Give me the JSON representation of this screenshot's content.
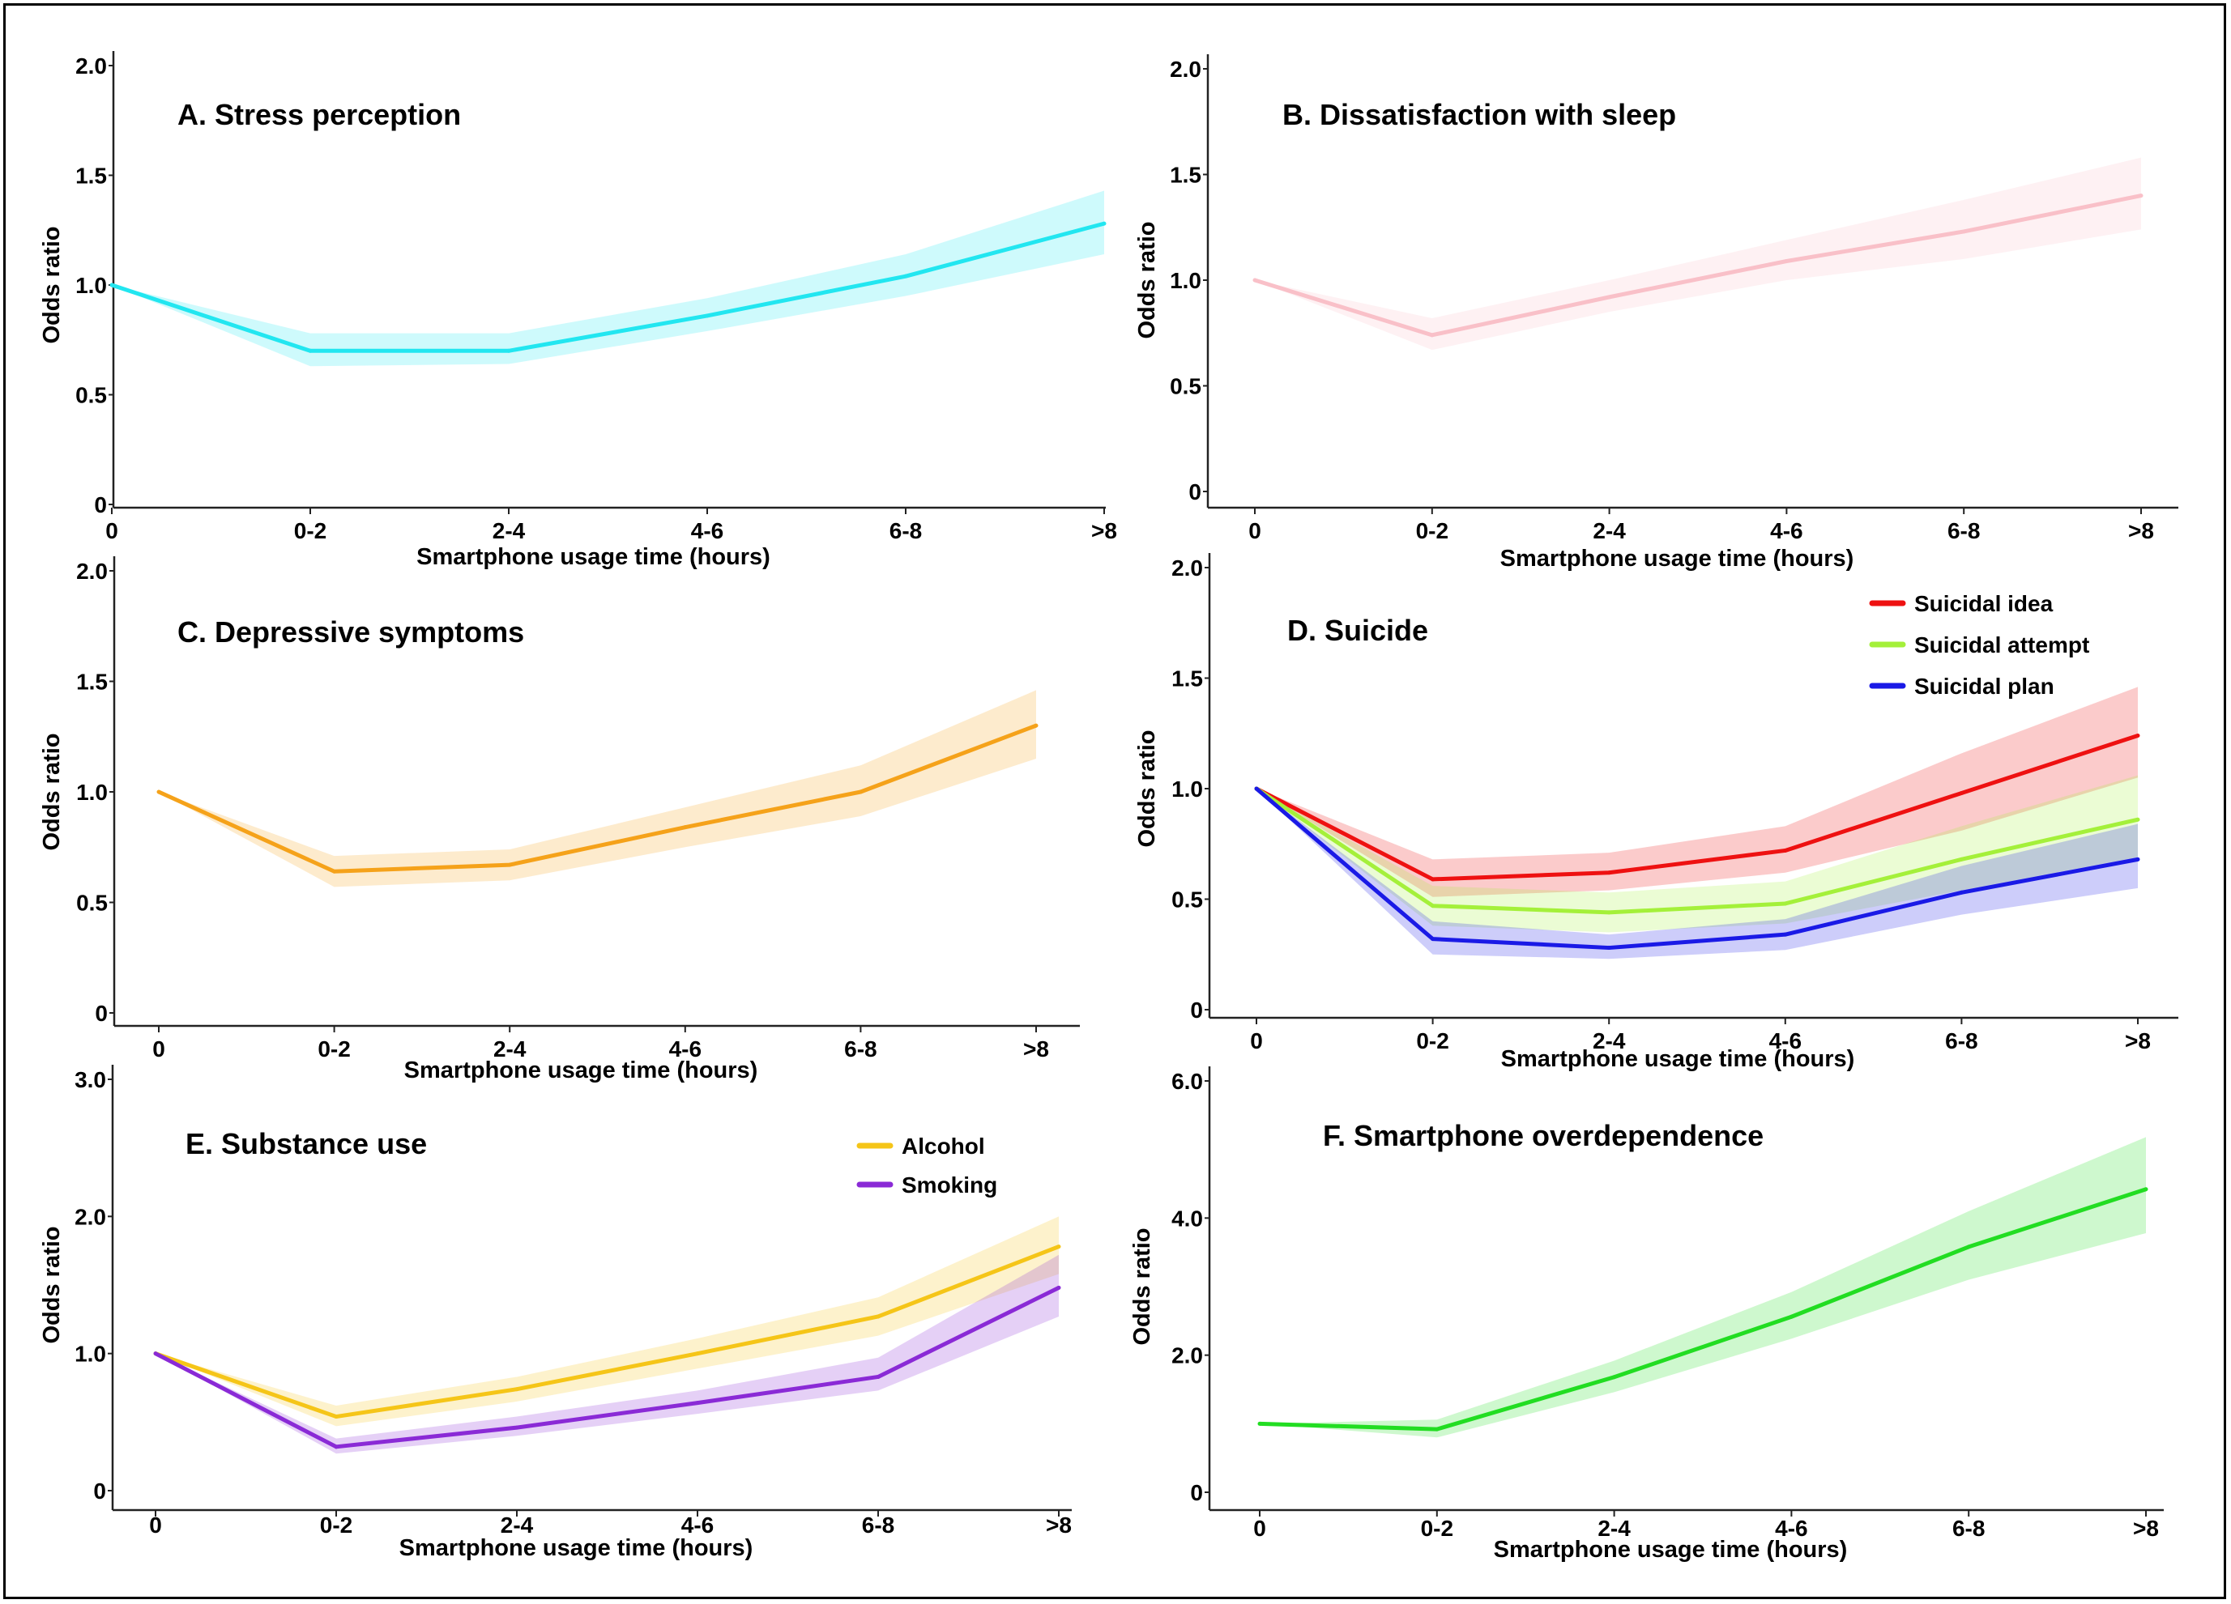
{
  "chart_data": [
    {
      "type": "line",
      "title": "A. Stress perception",
      "xlabel": "Smartphone usage time (hours)",
      "ylabel": "Odds ratio",
      "categories": [
        "0",
        "0-2",
        "2-4",
        "4-6",
        "6-8",
        ">8"
      ],
      "ylim": [
        0,
        2.0
      ],
      "yticks": [
        "0",
        "0.5",
        "1.0",
        "1.5",
        "2.0"
      ],
      "series": [
        {
          "values": [
            1.0,
            0.7,
            0.7,
            0.86,
            1.04,
            1.28
          ],
          "lower": [
            1.0,
            0.63,
            0.64,
            0.79,
            0.95,
            1.14
          ],
          "upper": [
            1.0,
            0.78,
            0.78,
            0.94,
            1.14,
            1.43
          ],
          "color": "#22e6f0"
        }
      ],
      "legend": null
    },
    {
      "type": "line",
      "title": "B. Dissatisfaction with sleep",
      "xlabel": "Smartphone usage time (hours)",
      "ylabel": "Odds ratio",
      "categories": [
        "0",
        "0-2",
        "2-4",
        "4-6",
        "6-8",
        ">8"
      ],
      "ylim": [
        0,
        2.0
      ],
      "yticks": [
        "0",
        "0.5",
        "1.0",
        "1.5",
        "2.0"
      ],
      "series": [
        {
          "values": [
            1.0,
            0.74,
            0.92,
            1.09,
            1.23,
            1.4
          ],
          "lower": [
            1.0,
            0.67,
            0.85,
            1.0,
            1.1,
            1.24
          ],
          "upper": [
            1.0,
            0.82,
            1.0,
            1.19,
            1.38,
            1.58
          ],
          "color": "#f9c0c8"
        }
      ],
      "legend": null
    },
    {
      "type": "line",
      "title": "C. Depressive symptoms",
      "xlabel": "Smartphone usage time (hours)",
      "ylabel": "Odds ratio",
      "categories": [
        "0",
        "0-2",
        "2-4",
        "4-6",
        "6-8",
        ">8"
      ],
      "ylim": [
        0,
        2.0
      ],
      "yticks": [
        "0",
        "0.5",
        "1.0",
        "1.5",
        "2.0"
      ],
      "series": [
        {
          "values": [
            1.0,
            0.64,
            0.67,
            0.84,
            1.0,
            1.3
          ],
          "lower": [
            1.0,
            0.57,
            0.6,
            0.75,
            0.89,
            1.15
          ],
          "upper": [
            1.0,
            0.71,
            0.74,
            0.93,
            1.12,
            1.46
          ],
          "color": "#f5a21a"
        }
      ],
      "legend": null
    },
    {
      "type": "line",
      "title": "D. Suicide",
      "xlabel": "Smartphone usage time (hours)",
      "ylabel": "Odds ratio",
      "categories": [
        "0",
        "0-2",
        "2-4",
        "4-6",
        "6-8",
        ">8"
      ],
      "ylim": [
        0,
        2.0
      ],
      "yticks": [
        "0",
        "0.5",
        "1.0",
        "1.5",
        "2.0"
      ],
      "series": [
        {
          "name": "Suicidal idea",
          "values": [
            1.0,
            0.59,
            0.62,
            0.72,
            0.98,
            1.24
          ],
          "lower": [
            1.0,
            0.51,
            0.54,
            0.62,
            0.81,
            1.05
          ],
          "upper": [
            1.0,
            0.68,
            0.71,
            0.83,
            1.16,
            1.46
          ],
          "color": "#ee1111"
        },
        {
          "name": "Suicidal attempt",
          "values": [
            1.0,
            0.47,
            0.44,
            0.48,
            0.68,
            0.86
          ],
          "lower": [
            1.0,
            0.38,
            0.35,
            0.39,
            0.54,
            0.69
          ],
          "upper": [
            1.0,
            0.56,
            0.53,
            0.58,
            0.83,
            1.06
          ],
          "color": "#a4f03a"
        },
        {
          "name": "Suicidal plan",
          "values": [
            1.0,
            0.32,
            0.28,
            0.34,
            0.53,
            0.68
          ],
          "lower": [
            1.0,
            0.25,
            0.23,
            0.27,
            0.43,
            0.55
          ],
          "upper": [
            1.0,
            0.4,
            0.34,
            0.41,
            0.65,
            0.84
          ],
          "color": "#1a1ae6"
        }
      ],
      "legend": "top-right"
    },
    {
      "type": "line",
      "title": "E. Substance use",
      "xlabel": "Smartphone usage time (hours)",
      "ylabel": "Odds ratio",
      "categories": [
        "0",
        "0-2",
        "2-4",
        "4-6",
        "6-8",
        ">8"
      ],
      "ylim": [
        0,
        3.0
      ],
      "yticks": [
        "0",
        "1.0",
        "2.0",
        "3.0"
      ],
      "series": [
        {
          "name": "Alcohol",
          "values": [
            1.0,
            0.54,
            0.74,
            1.0,
            1.27,
            1.78
          ],
          "lower": [
            1.0,
            0.47,
            0.65,
            0.89,
            1.13,
            1.58
          ],
          "upper": [
            1.0,
            0.62,
            0.83,
            1.11,
            1.41,
            2.0
          ],
          "color": "#f5c518"
        },
        {
          "name": "Smoking",
          "values": [
            1.0,
            0.32,
            0.46,
            0.64,
            0.83,
            1.48
          ],
          "lower": [
            1.0,
            0.27,
            0.4,
            0.56,
            0.73,
            1.27
          ],
          "upper": [
            1.0,
            0.38,
            0.54,
            0.73,
            0.97,
            1.72
          ],
          "color": "#8a2ad6"
        }
      ],
      "legend": "top-right"
    },
    {
      "type": "line",
      "title": "F. Smartphone overdependence",
      "xlabel": "Smartphone usage time (hours)",
      "ylabel": "Odds ratio",
      "categories": [
        "0",
        "0-2",
        "2-4",
        "4-6",
        "6-8",
        ">8"
      ],
      "ylim": [
        0,
        6.0
      ],
      "yticks": [
        "0",
        "2.0",
        "4.0",
        "6.0"
      ],
      "series": [
        {
          "values": [
            1.0,
            0.92,
            1.68,
            2.56,
            3.58,
            4.42
          ],
          "lower": [
            1.0,
            0.8,
            1.46,
            2.24,
            3.1,
            3.78
          ],
          "upper": [
            1.0,
            1.06,
            1.92,
            2.92,
            4.1,
            5.18
          ],
          "color": "#22dd22"
        }
      ],
      "legend": null
    }
  ]
}
